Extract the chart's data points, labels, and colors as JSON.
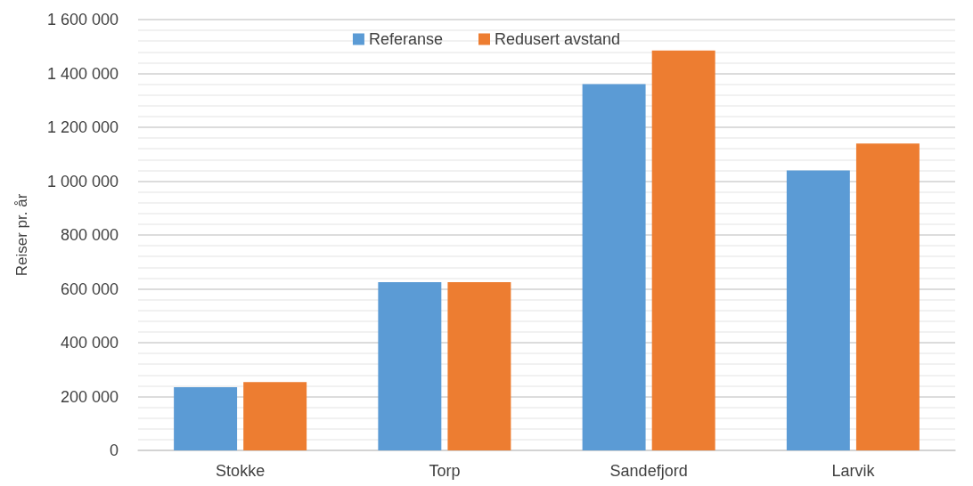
{
  "chart_data": {
    "type": "bar",
    "ylabel": "Reiser pr. år",
    "categories": [
      "Stokke",
      "Torp",
      "Sandefjord",
      "Larvik"
    ],
    "series": [
      {
        "name": "Referanse",
        "color": "#5b9bd5",
        "values": [
          235000,
          625000,
          1360000,
          1040000
        ]
      },
      {
        "name": "Redusert avstand",
        "color": "#ed7d31",
        "values": [
          254000,
          625000,
          1485000,
          1140000
        ]
      }
    ],
    "ylim": [
      0,
      1600000
    ],
    "yticks": [
      {
        "value": 0,
        "label": "0"
      },
      {
        "value": 200000,
        "label": "200 000"
      },
      {
        "value": 400000,
        "label": "400 000"
      },
      {
        "value": 600000,
        "label": "600 000"
      },
      {
        "value": 800000,
        "label": "800 000"
      },
      {
        "value": 1000000,
        "label": "1 000 000"
      },
      {
        "value": 1200000,
        "label": "1 200 000"
      },
      {
        "value": 1400000,
        "label": "1 400 000"
      },
      {
        "value": 1600000,
        "label": "1 600 000"
      }
    ],
    "grid": true,
    "legend": "top"
  }
}
